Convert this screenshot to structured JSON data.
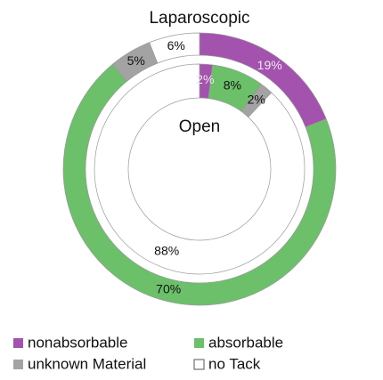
{
  "chart_data": {
    "type": "nested-donut",
    "rings": [
      "Laparoscopic",
      "Open"
    ],
    "series": [
      {
        "name": "nonabsorbable",
        "color": "#a352ad",
        "values": [
          19,
          2
        ],
        "value_labels": [
          "19%",
          "2%"
        ]
      },
      {
        "name": "absorbable",
        "color": "#6cc06a",
        "values": [
          70,
          8
        ],
        "value_labels": [
          "70%",
          "8%"
        ]
      },
      {
        "name": "unknown Material",
        "color": "#a3a3a3",
        "values": [
          5,
          2
        ],
        "value_labels": [
          "5%",
          "2%"
        ]
      },
      {
        "name": "no Tack",
        "color": "#ffffff",
        "values": [
          6,
          88
        ],
        "value_labels": [
          "6%",
          "88%"
        ]
      }
    ]
  }
}
